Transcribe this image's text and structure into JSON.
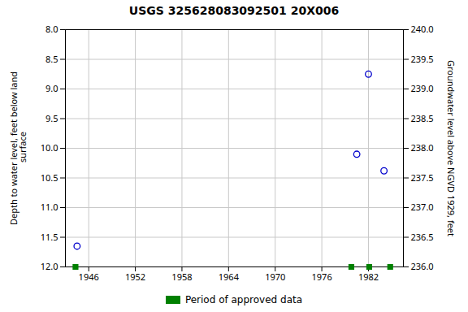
{
  "chart_data": {
    "type": "scatter",
    "title": "USGS 325628083092501 20X006",
    "ylabel": "Depth to water level, feet below land\n surface",
    "y2label": "Groundwater level above NGVD 1929, feet",
    "xlim": [
      1943,
      1986.5
    ],
    "xticks": [
      1946,
      1952,
      1958,
      1964,
      1970,
      1976,
      1982
    ],
    "ylim": [
      12.0,
      8.0
    ],
    "yticks": [
      {
        "value": 8.0,
        "label": "8.0"
      },
      {
        "value": 8.5,
        "label": "8.5"
      },
      {
        "value": 9.0,
        "label": "9.0"
      },
      {
        "value": 9.5,
        "label": "9.5"
      },
      {
        "value": 10.0,
        "label": "10.0"
      },
      {
        "value": 10.5,
        "label": "10.5"
      },
      {
        "value": 11.0,
        "label": "11.0"
      },
      {
        "value": 11.5,
        "label": "11.5"
      },
      {
        "value": 12.0,
        "label": "12.0"
      }
    ],
    "y2lim": [
      236.0,
      240.0
    ],
    "y2ticks": [
      {
        "value": 240.0,
        "label": "240.0"
      },
      {
        "value": 239.5,
        "label": "239.5"
      },
      {
        "value": 239.0,
        "label": "239.0"
      },
      {
        "value": 238.5,
        "label": "238.5"
      },
      {
        "value": 238.0,
        "label": "238.0"
      },
      {
        "value": 237.5,
        "label": "237.5"
      },
      {
        "value": 237.0,
        "label": "237.0"
      },
      {
        "value": 236.5,
        "label": "236.5"
      },
      {
        "value": 236.0,
        "label": "236.0"
      }
    ],
    "grid": true,
    "legend": "bottom",
    "series": [
      {
        "color": "#0000cc",
        "marker": "circle",
        "x": [
          1944.5,
          1980.5,
          1982.0,
          1984.0
        ],
        "values": [
          11.65,
          10.1,
          8.75,
          10.38
        ]
      },
      {
        "name": "Period of approved data",
        "color": "#008000",
        "marker": "square",
        "x": [
          1944.3,
          1979.8,
          1982.1,
          1984.8
        ],
        "values": [
          12.0,
          12.0,
          12.0,
          12.0
        ]
      }
    ]
  }
}
